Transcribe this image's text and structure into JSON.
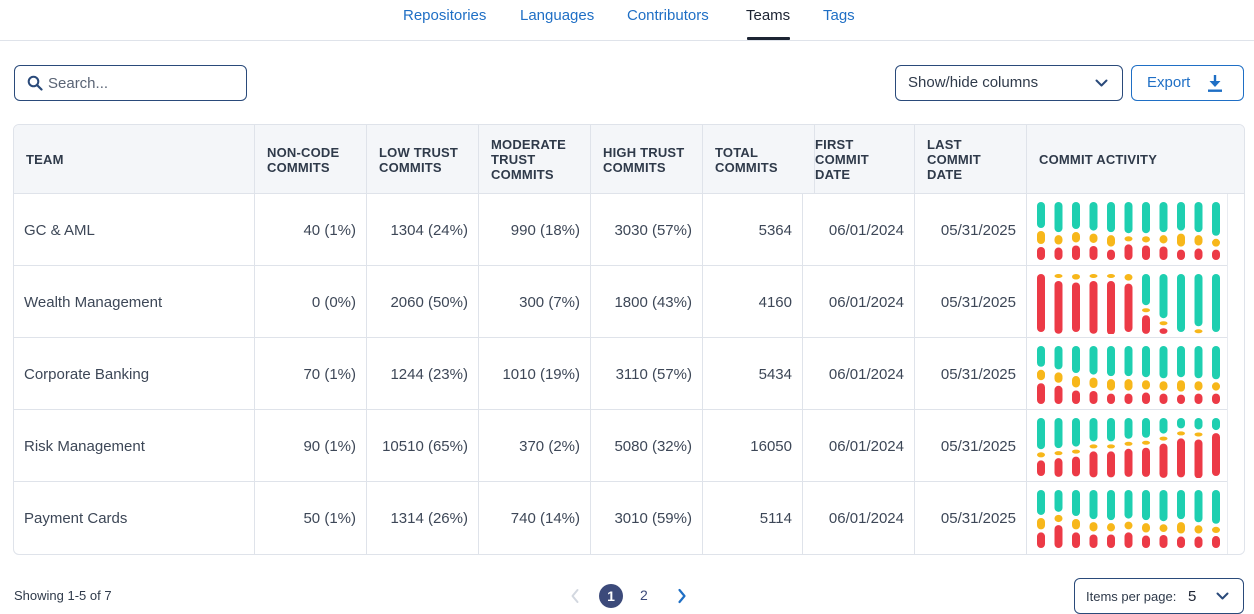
{
  "tabs": [
    {
      "label": "Repositories",
      "active": false
    },
    {
      "label": "Languages",
      "active": false
    },
    {
      "label": "Contributors",
      "active": false
    },
    {
      "label": "Teams",
      "active": true
    },
    {
      "label": "Tags",
      "active": false
    }
  ],
  "toolbar": {
    "search_placeholder": "Search...",
    "search_icon": "search-icon",
    "columns_label": "Show/hide columns",
    "columns_icon": "chevron-down-icon",
    "export_label": "Export",
    "export_icon": "download-icon"
  },
  "colors": {
    "accent": "#1f6fc5",
    "high_trust": "#1ecfb0",
    "moderate_trust": "#f7b71a",
    "low_trust": "#ec3a46"
  },
  "table": {
    "headers": [
      [
        "TEAM"
      ],
      [
        "NON-CODE",
        "COMMITS"
      ],
      [
        "LOW TRUST",
        "COMMITS"
      ],
      [
        "MODERATE",
        "TRUST",
        "COMMITS"
      ],
      [
        "HIGH TRUST",
        "COMMITS"
      ],
      [
        "TOTAL",
        "COMMITS"
      ],
      [
        "FIRST",
        "COMMIT",
        "DATE"
      ],
      [
        "LAST",
        "COMMIT",
        "DATE"
      ],
      [
        "COMMIT ACTIVITY"
      ]
    ],
    "rows": [
      {
        "team": "GC & AML",
        "non_code": "40 (1%)",
        "low": "1304 (24%)",
        "moderate": "990 (18%)",
        "high": "3030 (57%)",
        "total": "5364",
        "first": "06/01/2024",
        "last": "05/31/2025",
        "activity": [
          [
            0.5,
            0.25,
            0.25
          ],
          [
            0.58,
            0.18,
            0.24
          ],
          [
            0.52,
            0.2,
            0.28
          ],
          [
            0.55,
            0.18,
            0.27
          ],
          [
            0.58,
            0.22,
            0.2
          ],
          [
            0.6,
            0.1,
            0.3
          ],
          [
            0.6,
            0.12,
            0.28
          ],
          [
            0.58,
            0.16,
            0.26
          ],
          [
            0.55,
            0.25,
            0.2
          ],
          [
            0.58,
            0.2,
            0.22
          ],
          [
            0.65,
            0.15,
            0.2
          ],
          [
            0.6,
            0.15,
            0.25
          ]
        ]
      },
      {
        "team": "Wealth Management",
        "non_code": "0 (0%)",
        "low": "2060 (50%)",
        "moderate": "300 (7%)",
        "high": "1800 (43%)",
        "total": "4160",
        "first": "06/01/2024",
        "last": "05/31/2025",
        "activity": [
          [
            0.0,
            0.0,
            1.0
          ],
          [
            0.0,
            0.04,
            0.96
          ],
          [
            0.0,
            0.1,
            0.9
          ],
          [
            0.0,
            0.04,
            0.96
          ],
          [
            0.0,
            0.02,
            0.98
          ],
          [
            0.0,
            0.12,
            0.88
          ],
          [
            0.6,
            0.04,
            0.36
          ],
          [
            0.85,
            0.04,
            0.11
          ],
          [
            1.0,
            0.0,
            0.0
          ],
          [
            0.95,
            0.05,
            0.0
          ],
          [
            1.0,
            0.0,
            0.0
          ],
          [
            1.0,
            0.0,
            0.0
          ]
        ]
      },
      {
        "team": "Corporate Banking",
        "non_code": "70 (1%)",
        "low": "1244 (23%)",
        "moderate": "1010 (19%)",
        "high": "3110 (57%)",
        "total": "5434",
        "first": "06/01/2024",
        "last": "05/31/2025",
        "activity": [
          [
            0.4,
            0.2,
            0.4
          ],
          [
            0.45,
            0.2,
            0.35
          ],
          [
            0.52,
            0.22,
            0.26
          ],
          [
            0.55,
            0.2,
            0.25
          ],
          [
            0.58,
            0.22,
            0.2
          ],
          [
            0.58,
            0.22,
            0.2
          ],
          [
            0.6,
            0.18,
            0.22
          ],
          [
            0.62,
            0.18,
            0.2
          ],
          [
            0.6,
            0.22,
            0.18
          ],
          [
            0.62,
            0.18,
            0.2
          ],
          [
            0.64,
            0.16,
            0.2
          ],
          [
            0.56,
            0.22,
            0.22
          ]
        ]
      },
      {
        "team": "Risk Management",
        "non_code": "90 (1%)",
        "low": "10510 (65%)",
        "moderate": "370 (2%)",
        "high": "5080 (32%)",
        "total": "16050",
        "first": "06/01/2024",
        "last": "05/31/2025",
        "activity": [
          [
            0.6,
            0.1,
            0.3
          ],
          [
            0.58,
            0.06,
            0.36
          ],
          [
            0.55,
            0.07,
            0.38
          ],
          [
            0.45,
            0.05,
            0.5
          ],
          [
            0.45,
            0.05,
            0.5
          ],
          [
            0.4,
            0.06,
            0.54
          ],
          [
            0.38,
            0.06,
            0.56
          ],
          [
            0.3,
            0.04,
            0.66
          ],
          [
            0.2,
            0.05,
            0.75
          ],
          [
            0.22,
            0.03,
            0.75
          ],
          [
            0.22,
            0.0,
            0.78
          ],
          [
            0.2,
            0.0,
            0.8
          ]
        ]
      },
      {
        "team": "Payment Cards",
        "non_code": "50 (1%)",
        "low": "1314 (26%)",
        "moderate": "740 (14%)",
        "high": "3010 (59%)",
        "total": "5114",
        "first": "06/01/2024",
        "last": "05/31/2025",
        "activity": [
          [
            0.48,
            0.22,
            0.3
          ],
          [
            0.42,
            0.14,
            0.44
          ],
          [
            0.5,
            0.2,
            0.3
          ],
          [
            0.56,
            0.18,
            0.26
          ],
          [
            0.58,
            0.16,
            0.26
          ],
          [
            0.55,
            0.15,
            0.3
          ],
          [
            0.58,
            0.18,
            0.24
          ],
          [
            0.6,
            0.15,
            0.25
          ],
          [
            0.56,
            0.22,
            0.22
          ],
          [
            0.62,
            0.16,
            0.22
          ],
          [
            0.65,
            0.12,
            0.23
          ],
          [
            0.63,
            0.14,
            0.23
          ]
        ]
      }
    ]
  },
  "footer": {
    "showing": "Showing 1-5 of 7",
    "pages": [
      "1",
      "2"
    ],
    "current_page": "1",
    "items_per_page_label": "Items per page:",
    "items_per_page_value": "5"
  }
}
